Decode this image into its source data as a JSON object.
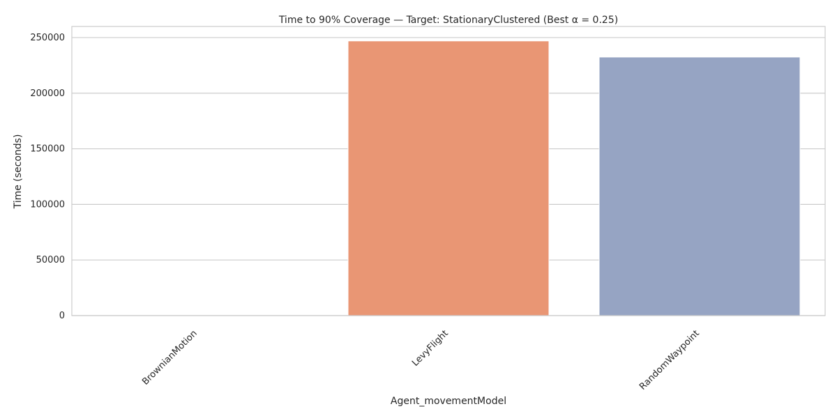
{
  "chart_data": {
    "type": "bar",
    "title": "Time to 90% Coverage — Target: StationaryClustered (Best α = 0.25)",
    "xlabel": "Agent_movementModel",
    "ylabel": "Time (seconds)",
    "categories": [
      "BrownianMotion",
      "LevyFlight",
      "RandomWaypoint"
    ],
    "values": [
      0,
      247000,
      232500
    ],
    "ylim": [
      0,
      260000
    ],
    "yticks": [
      0,
      50000,
      100000,
      150000,
      200000,
      250000
    ],
    "grid": true,
    "colors": [
      "#66c2a5",
      "#e99674",
      "#96a4c3"
    ],
    "xtick_rotation": 45
  }
}
